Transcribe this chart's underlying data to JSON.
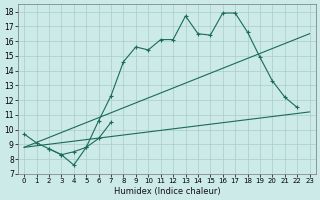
{
  "xlabel": "Humidex (Indice chaleur)",
  "bg_color": "#cceae8",
  "grid_color": "#aacccc",
  "line_color": "#1a6b5a",
  "xlim": [
    -0.5,
    23.5
  ],
  "ylim": [
    7,
    18.5
  ],
  "xtick_labels": [
    "0",
    "1",
    "2",
    "3",
    "4",
    "5",
    "6",
    "7",
    "8",
    "9",
    "10",
    "11",
    "12",
    "13",
    "14",
    "15",
    "16",
    "17",
    "18",
    "19",
    "20",
    "21",
    "22",
    "23"
  ],
  "ytick_labels": [
    "7",
    "8",
    "9",
    "10",
    "11",
    "12",
    "13",
    "14",
    "15",
    "16",
    "17",
    "18"
  ],
  "line1_x": [
    0,
    1,
    2,
    3,
    4,
    5,
    6,
    7,
    8,
    9,
    10,
    11,
    12,
    13,
    14,
    15,
    16,
    17,
    18,
    19,
    20,
    21,
    22
  ],
  "line1_y": [
    9.7,
    9.1,
    8.7,
    8.3,
    7.6,
    8.8,
    10.6,
    12.3,
    14.6,
    15.6,
    15.4,
    16.1,
    16.1,
    17.7,
    16.5,
    16.4,
    17.9,
    17.9,
    16.6,
    14.9,
    13.3,
    12.2,
    11.5
  ],
  "line2_x": [
    2,
    3,
    4,
    5,
    6,
    7
  ],
  "line2_y": [
    8.7,
    8.3,
    8.5,
    8.8,
    9.4,
    10.5
  ],
  "line3_x": [
    0,
    23
  ],
  "line3_y": [
    8.8,
    11.2
  ],
  "line4_x": [
    0,
    23
  ],
  "line4_y": [
    8.8,
    16.5
  ]
}
